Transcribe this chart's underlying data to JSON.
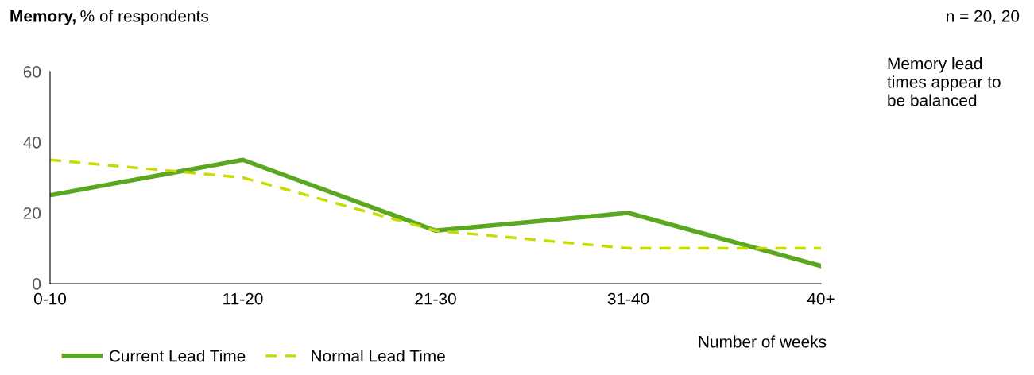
{
  "chart_data": {
    "type": "line",
    "title": "Memory, % of respondents",
    "xlabel": "Number of weeks",
    "annotations": [
      "n = 20, 20",
      "Memory lead\ntimes appear to\nbe balanced"
    ],
    "categories": [
      "0-10",
      "11-20",
      "21-30",
      "31-40",
      "40+"
    ],
    "series": [
      {
        "name": "Current Lead Time",
        "color": "#5aa720",
        "values": [
          25,
          35,
          15,
          20,
          5
        ],
        "line_style": "solid"
      },
      {
        "name": "Normal Lead Time",
        "color": "#c8dc00",
        "values": [
          35,
          30,
          15,
          10,
          10
        ],
        "line_style": "dashed"
      }
    ],
    "ylim": [
      0,
      60
    ],
    "yticks": [
      0,
      20,
      40,
      60
    ],
    "grid": false,
    "legend": "bottom left",
    "marker": "none"
  }
}
